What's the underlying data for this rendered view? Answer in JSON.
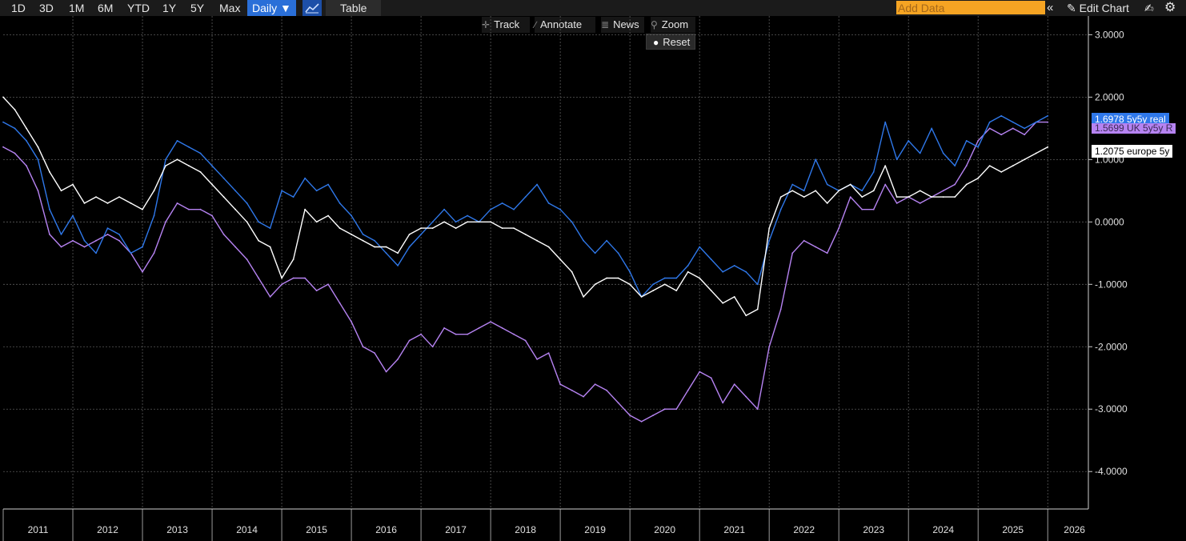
{
  "toolbar": {
    "ranges": [
      "1D",
      "3D",
      "1M",
      "6M",
      "YTD",
      "1Y",
      "5Y",
      "Max"
    ],
    "frequency_label": "Daily ▼",
    "table_label": "Table",
    "add_data_placeholder": "Add Data",
    "edit_chart_label": "Edit Chart",
    "collapse_icon": "double-chevron-left-icon",
    "edit_icon": "pencil-icon",
    "settings_icon": "gear-icon"
  },
  "tools": {
    "track": "Track",
    "annotate": "Annotate",
    "news": "News",
    "zoom": "Zoom",
    "reset": "Reset"
  },
  "colors": {
    "background": "#000000",
    "toolbar_bg": "#1b1b1b",
    "accent": "#2a6fd8",
    "add_data": "#f5a423",
    "grid": "#5a5a5a"
  },
  "chart_data": {
    "type": "line",
    "title": "",
    "xlabel": "",
    "ylabel": "",
    "x_tick_labels": [
      "2011",
      "2012",
      "2013",
      "2014",
      "2015",
      "2016",
      "2017",
      "2018",
      "2019",
      "2020",
      "2021",
      "2022",
      "2023",
      "2024",
      "2025",
      "2026"
    ],
    "y_tick_labels": [
      "3.0000",
      "2.0000",
      "1.0000",
      "0.0000",
      "-1.0000",
      "-2.0000",
      "-3.0000",
      "-4.0000"
    ],
    "xlim": [
      "2011-01",
      "2026-08"
    ],
    "ylim": [
      -4.6,
      3.3
    ],
    "grid": true,
    "legend": "right-axis value tags",
    "series": [
      {
        "name": "5y5y real",
        "last_value": "1.6978",
        "color": "#2f78ea",
        "x": [
          "2011-01",
          "2011-03",
          "2011-05",
          "2011-07",
          "2011-09",
          "2011-11",
          "2012-01",
          "2012-03",
          "2012-05",
          "2012-07",
          "2012-09",
          "2012-11",
          "2013-01",
          "2013-03",
          "2013-05",
          "2013-07",
          "2013-09",
          "2013-11",
          "2014-01",
          "2014-03",
          "2014-05",
          "2014-07",
          "2014-09",
          "2014-11",
          "2015-01",
          "2015-03",
          "2015-05",
          "2015-07",
          "2015-09",
          "2015-11",
          "2016-01",
          "2016-03",
          "2016-05",
          "2016-07",
          "2016-09",
          "2016-11",
          "2017-01",
          "2017-03",
          "2017-05",
          "2017-07",
          "2017-09",
          "2017-11",
          "2018-01",
          "2018-03",
          "2018-05",
          "2018-07",
          "2018-09",
          "2018-11",
          "2019-01",
          "2019-03",
          "2019-05",
          "2019-07",
          "2019-09",
          "2019-11",
          "2020-01",
          "2020-03",
          "2020-05",
          "2020-07",
          "2020-09",
          "2020-11",
          "2021-01",
          "2021-03",
          "2021-05",
          "2021-07",
          "2021-09",
          "2021-11",
          "2022-01",
          "2022-03",
          "2022-05",
          "2022-07",
          "2022-09",
          "2022-11",
          "2023-01",
          "2023-03",
          "2023-05",
          "2023-07",
          "2023-09",
          "2023-11",
          "2024-01",
          "2024-03",
          "2024-05",
          "2024-07",
          "2024-09",
          "2024-11",
          "2025-01",
          "2025-03",
          "2025-05",
          "2025-07",
          "2025-09",
          "2025-11",
          "2026-01"
        ],
        "y": [
          1.6,
          1.5,
          1.3,
          1.0,
          0.2,
          -0.2,
          0.1,
          -0.3,
          -0.5,
          -0.1,
          -0.2,
          -0.5,
          -0.4,
          0.1,
          1.0,
          1.3,
          1.2,
          1.1,
          0.9,
          0.7,
          0.5,
          0.3,
          0.0,
          -0.1,
          0.5,
          0.4,
          0.7,
          0.5,
          0.6,
          0.3,
          0.1,
          -0.2,
          -0.3,
          -0.5,
          -0.7,
          -0.4,
          -0.2,
          0.0,
          0.2,
          0.0,
          0.1,
          0.0,
          0.2,
          0.3,
          0.2,
          0.4,
          0.6,
          0.3,
          0.2,
          0.0,
          -0.3,
          -0.5,
          -0.3,
          -0.5,
          -0.8,
          -1.2,
          -1.0,
          -0.9,
          -0.9,
          -0.7,
          -0.4,
          -0.6,
          -0.8,
          -0.7,
          -0.8,
          -1.0,
          -0.3,
          0.2,
          0.6,
          0.5,
          1.0,
          0.6,
          0.5,
          0.6,
          0.5,
          0.8,
          1.6,
          1.0,
          1.3,
          1.1,
          1.5,
          1.1,
          0.9,
          1.3,
          1.2,
          1.6,
          1.7,
          1.6,
          1.5,
          1.6,
          1.7
        ]
      },
      {
        "name": "UK 5y5y R",
        "last_value": "1.5699",
        "color": "#b683f2",
        "x": [
          "2011-01",
          "2011-03",
          "2011-05",
          "2011-07",
          "2011-09",
          "2011-11",
          "2012-01",
          "2012-03",
          "2012-05",
          "2012-07",
          "2012-09",
          "2012-11",
          "2013-01",
          "2013-03",
          "2013-05",
          "2013-07",
          "2013-09",
          "2013-11",
          "2014-01",
          "2014-03",
          "2014-05",
          "2014-07",
          "2014-09",
          "2014-11",
          "2015-01",
          "2015-03",
          "2015-05",
          "2015-07",
          "2015-09",
          "2015-11",
          "2016-01",
          "2016-03",
          "2016-05",
          "2016-07",
          "2016-09",
          "2016-11",
          "2017-01",
          "2017-03",
          "2017-05",
          "2017-07",
          "2017-09",
          "2017-11",
          "2018-01",
          "2018-03",
          "2018-05",
          "2018-07",
          "2018-09",
          "2018-11",
          "2019-01",
          "2019-03",
          "2019-05",
          "2019-07",
          "2019-09",
          "2019-11",
          "2020-01",
          "2020-03",
          "2020-05",
          "2020-07",
          "2020-09",
          "2020-11",
          "2021-01",
          "2021-03",
          "2021-05",
          "2021-07",
          "2021-09",
          "2021-11",
          "2022-01",
          "2022-03",
          "2022-05",
          "2022-07",
          "2022-09",
          "2022-11",
          "2023-01",
          "2023-03",
          "2023-05",
          "2023-07",
          "2023-09",
          "2023-11",
          "2024-01",
          "2024-03",
          "2024-05",
          "2024-07",
          "2024-09",
          "2024-11",
          "2025-01",
          "2025-03",
          "2025-05",
          "2025-07",
          "2025-09",
          "2025-11",
          "2026-01"
        ],
        "y": [
          1.2,
          1.1,
          0.9,
          0.5,
          -0.2,
          -0.4,
          -0.3,
          -0.4,
          -0.3,
          -0.2,
          -0.3,
          -0.5,
          -0.8,
          -0.5,
          0.0,
          0.3,
          0.2,
          0.2,
          0.1,
          -0.2,
          -0.4,
          -0.6,
          -0.9,
          -1.2,
          -1.0,
          -0.9,
          -0.9,
          -1.1,
          -1.0,
          -1.3,
          -1.6,
          -2.0,
          -2.1,
          -2.4,
          -2.2,
          -1.9,
          -1.8,
          -2.0,
          -1.7,
          -1.8,
          -1.8,
          -1.7,
          -1.6,
          -1.7,
          -1.8,
          -1.9,
          -2.2,
          -2.1,
          -2.6,
          -2.7,
          -2.8,
          -2.6,
          -2.7,
          -2.9,
          -3.1,
          -3.2,
          -3.1,
          -3.0,
          -3.0,
          -2.7,
          -2.4,
          -2.5,
          -2.9,
          -2.6,
          -2.8,
          -3.0,
          -2.0,
          -1.4,
          -0.5,
          -0.3,
          -0.4,
          -0.5,
          -0.1,
          0.4,
          0.2,
          0.2,
          0.6,
          0.3,
          0.4,
          0.3,
          0.4,
          0.5,
          0.6,
          0.9,
          1.3,
          1.5,
          1.4,
          1.5,
          1.4,
          1.6,
          1.6
        ]
      },
      {
        "name": "europe 5y",
        "last_value": "1.2075",
        "color": "#ffffff",
        "x": [
          "2011-01",
          "2011-03",
          "2011-05",
          "2011-07",
          "2011-09",
          "2011-11",
          "2012-01",
          "2012-03",
          "2012-05",
          "2012-07",
          "2012-09",
          "2012-11",
          "2013-01",
          "2013-03",
          "2013-05",
          "2013-07",
          "2013-09",
          "2013-11",
          "2014-01",
          "2014-03",
          "2014-05",
          "2014-07",
          "2014-09",
          "2014-11",
          "2015-01",
          "2015-03",
          "2015-05",
          "2015-07",
          "2015-09",
          "2015-11",
          "2016-01",
          "2016-03",
          "2016-05",
          "2016-07",
          "2016-09",
          "2016-11",
          "2017-01",
          "2017-03",
          "2017-05",
          "2017-07",
          "2017-09",
          "2017-11",
          "2018-01",
          "2018-03",
          "2018-05",
          "2018-07",
          "2018-09",
          "2018-11",
          "2019-01",
          "2019-03",
          "2019-05",
          "2019-07",
          "2019-09",
          "2019-11",
          "2020-01",
          "2020-03",
          "2020-05",
          "2020-07",
          "2020-09",
          "2020-11",
          "2021-01",
          "2021-03",
          "2021-05",
          "2021-07",
          "2021-09",
          "2021-11",
          "2022-01",
          "2022-03",
          "2022-05",
          "2022-07",
          "2022-09",
          "2022-11",
          "2023-01",
          "2023-03",
          "2023-05",
          "2023-07",
          "2023-09",
          "2023-11",
          "2024-01",
          "2024-03",
          "2024-05",
          "2024-07",
          "2024-09",
          "2024-11",
          "2025-01",
          "2025-03",
          "2025-05",
          "2025-07",
          "2025-09",
          "2025-11",
          "2026-01"
        ],
        "y": [
          2.0,
          1.8,
          1.5,
          1.2,
          0.8,
          0.5,
          0.6,
          0.3,
          0.4,
          0.3,
          0.4,
          0.3,
          0.2,
          0.5,
          0.9,
          1.0,
          0.9,
          0.8,
          0.6,
          0.4,
          0.2,
          0.0,
          -0.3,
          -0.4,
          -0.9,
          -0.6,
          0.2,
          0.0,
          0.1,
          -0.1,
          -0.2,
          -0.3,
          -0.4,
          -0.4,
          -0.5,
          -0.2,
          -0.1,
          -0.1,
          0.0,
          -0.1,
          0.0,
          0.0,
          0.0,
          -0.1,
          -0.1,
          -0.2,
          -0.3,
          -0.4,
          -0.6,
          -0.8,
          -1.2,
          -1.0,
          -0.9,
          -0.9,
          -1.0,
          -1.2,
          -1.1,
          -1.0,
          -1.1,
          -0.8,
          -0.9,
          -1.1,
          -1.3,
          -1.2,
          -1.5,
          -1.4,
          -0.1,
          0.4,
          0.5,
          0.4,
          0.5,
          0.3,
          0.5,
          0.6,
          0.4,
          0.5,
          0.9,
          0.4,
          0.4,
          0.5,
          0.4,
          0.4,
          0.4,
          0.6,
          0.7,
          0.9,
          0.8,
          0.9,
          1.0,
          1.1,
          1.2
        ]
      }
    ]
  }
}
